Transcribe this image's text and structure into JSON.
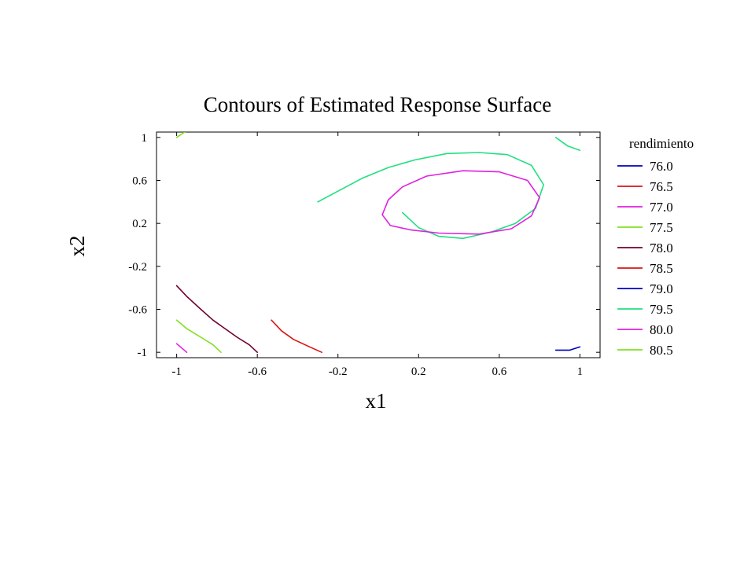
{
  "chart_data": {
    "type": "contour",
    "title": "Contours of Estimated Response Surface",
    "xlabel": "x1",
    "ylabel": "x2",
    "xlim": [
      -1.1,
      1.1
    ],
    "ylim": [
      -1.05,
      1.05
    ],
    "xticks": [
      "-1",
      "-0.6",
      "-0.2",
      "0.2",
      "0.6",
      "1"
    ],
    "xtick_values": [
      -1,
      -0.6,
      -0.2,
      0.2,
      0.6,
      1
    ],
    "yticks": [
      "1",
      "0.6",
      "0.2",
      "-0.2",
      "-0.6",
      "-1"
    ],
    "ytick_values": [
      1,
      0.6,
      0.2,
      -0.2,
      -0.6,
      -1
    ],
    "legend_title": "rendimiento",
    "legend_position": "right",
    "series": [
      {
        "name": "76.0",
        "color": "#0000c0",
        "paths": []
      },
      {
        "name": "76.5",
        "color": "#d81414",
        "paths": []
      },
      {
        "name": "77.0",
        "color": "#e020e0",
        "paths": [
          [
            [
              -1,
              -0.92
            ],
            [
              -0.95,
              -1.0
            ]
          ]
        ]
      },
      {
        "name": "77.5",
        "color": "#80e020",
        "paths": [
          [
            [
              -1,
              -0.7
            ],
            [
              -0.95,
              -0.78
            ],
            [
              -0.88,
              -0.86
            ],
            [
              -0.82,
              -0.93
            ],
            [
              -0.78,
              -1.0
            ]
          ]
        ]
      },
      {
        "name": "78.0",
        "color": "#700030",
        "paths": [
          [
            [
              -1,
              -0.38
            ],
            [
              -0.95,
              -0.48
            ],
            [
              -0.88,
              -0.6
            ],
            [
              -0.82,
              -0.7
            ],
            [
              -0.76,
              -0.78
            ],
            [
              -0.7,
              -0.86
            ],
            [
              -0.64,
              -0.93
            ],
            [
              -0.6,
              -1.0
            ]
          ]
        ]
      },
      {
        "name": "78.5",
        "color": "#d81414",
        "paths": [
          [
            [
              -0.53,
              -0.7
            ],
            [
              -0.48,
              -0.8
            ],
            [
              -0.42,
              -0.88
            ],
            [
              -0.34,
              -0.95
            ],
            [
              -0.28,
              -1.0
            ]
          ]
        ]
      },
      {
        "name": "79.0",
        "color": "#0000c0",
        "paths": [
          [
            [
              0.88,
              -0.98
            ],
            [
              0.95,
              -0.98
            ],
            [
              1,
              -0.95
            ]
          ]
        ]
      },
      {
        "name": "79.5",
        "color": "#20e080",
        "paths": [
          [
            [
              -0.3,
              0.4
            ],
            [
              -0.2,
              0.5
            ],
            [
              -0.08,
              0.62
            ],
            [
              0.05,
              0.72
            ],
            [
              0.18,
              0.79
            ],
            [
              0.34,
              0.85
            ],
            [
              0.5,
              0.86
            ],
            [
              0.64,
              0.84
            ],
            [
              0.76,
              0.74
            ],
            [
              0.82,
              0.56
            ],
            [
              0.78,
              0.34
            ],
            [
              0.68,
              0.2
            ],
            [
              0.56,
              0.12
            ],
            [
              0.42,
              0.06
            ],
            [
              0.3,
              0.08
            ],
            [
              0.2,
              0.16
            ],
            [
              0.12,
              0.3
            ]
          ],
          [
            [
              0.88,
              1.0
            ],
            [
              0.94,
              0.92
            ],
            [
              1,
              0.88
            ]
          ]
        ]
      },
      {
        "name": "80.0",
        "color": "#e020e0",
        "paths": [
          [
            [
              0.02,
              0.28
            ],
            [
              0.05,
              0.42
            ],
            [
              0.12,
              0.54
            ],
            [
              0.24,
              0.64
            ],
            [
              0.42,
              0.69
            ],
            [
              0.6,
              0.68
            ],
            [
              0.74,
              0.6
            ],
            [
              0.8,
              0.44
            ],
            [
              0.76,
              0.27
            ],
            [
              0.66,
              0.15
            ],
            [
              0.5,
              0.1
            ],
            [
              0.3,
              0.11
            ],
            [
              0.16,
              0.14
            ],
            [
              0.06,
              0.18
            ],
            [
              0.02,
              0.28
            ]
          ]
        ]
      },
      {
        "name": "80.5",
        "color": "#80e020",
        "paths": [
          [
            [
              -1,
              1.0
            ],
            [
              -0.96,
              1.05
            ]
          ]
        ]
      }
    ]
  }
}
